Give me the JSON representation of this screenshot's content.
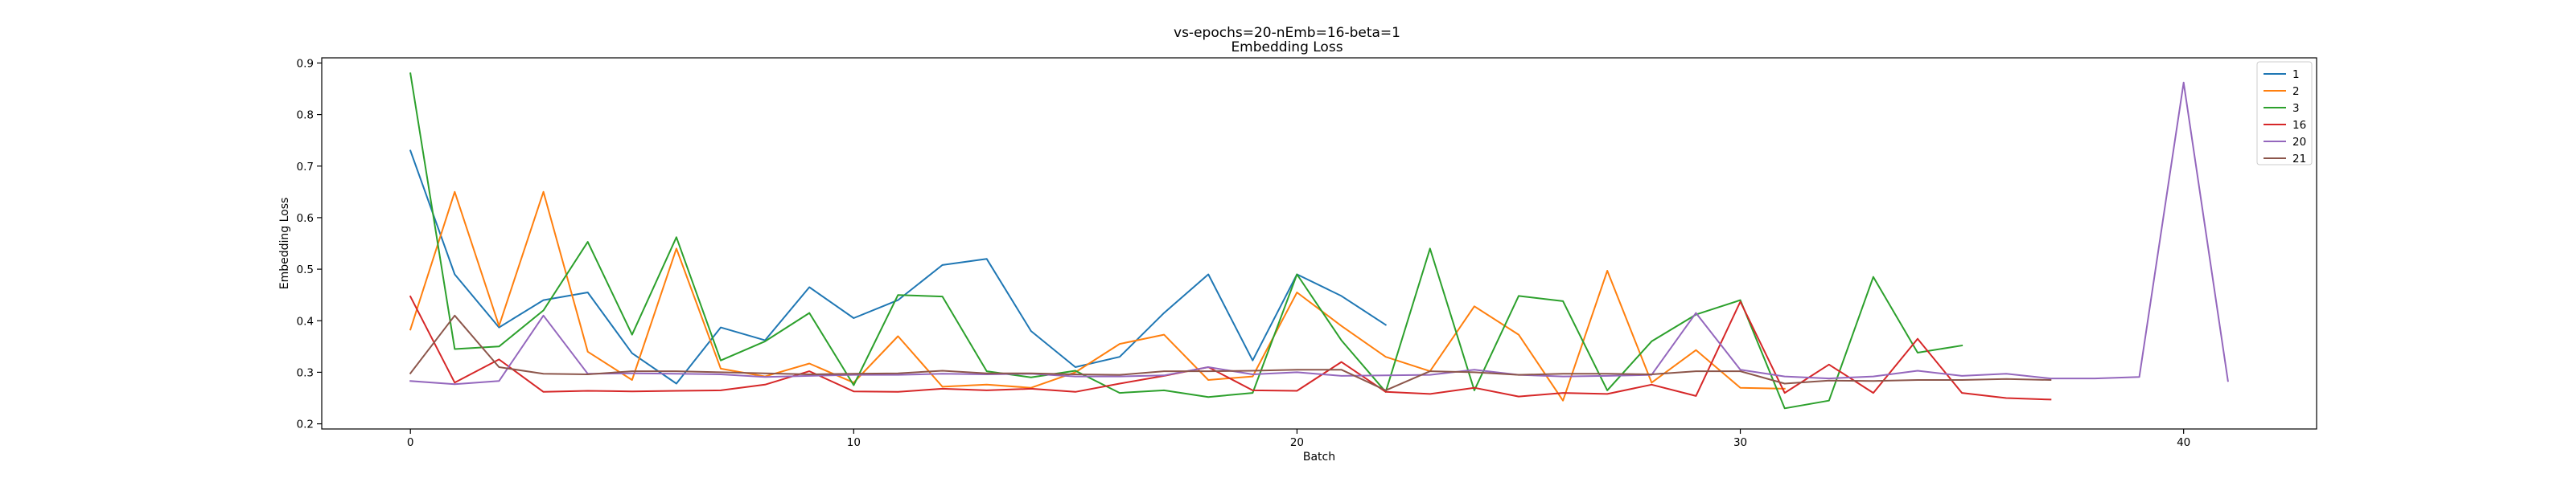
{
  "chart_data": {
    "type": "line",
    "title_line1": "vs-epochs=20-nEmb=16-beta=1",
    "title_line2": "Embedding Loss",
    "xlabel": "Batch",
    "ylabel": "Embedding Loss",
    "xlim": [
      -2,
      43
    ],
    "ylim": [
      0.19,
      0.91
    ],
    "xticks": [
      0,
      10,
      20,
      30,
      40
    ],
    "yticks": [
      0.2,
      0.3,
      0.4,
      0.5,
      0.6,
      0.7,
      0.8,
      0.9
    ],
    "xtick_labels": [
      "0",
      "10",
      "20",
      "30",
      "40"
    ],
    "ytick_labels": [
      "0.2",
      "0.3",
      "0.4",
      "0.5",
      "0.6",
      "0.7",
      "0.8",
      "0.9"
    ],
    "grid": false,
    "legend_position": "top-right",
    "series": [
      {
        "name": "1",
        "color": "#1f77b4",
        "values": [
          0.73,
          0.49,
          0.387,
          0.44,
          0.455,
          0.337,
          0.278,
          0.387,
          0.362,
          0.465,
          0.405,
          0.44,
          0.508,
          0.52,
          0.38,
          0.31,
          0.33,
          0.415,
          0.49,
          0.323,
          0.49,
          0.448,
          0.392
        ]
      },
      {
        "name": "2",
        "color": "#ff7f0e",
        "values": [
          0.383,
          0.65,
          0.39,
          0.65,
          0.34,
          0.285,
          0.54,
          0.307,
          0.292,
          0.317,
          0.28,
          0.37,
          0.272,
          0.276,
          0.27,
          0.3,
          0.355,
          0.373,
          0.285,
          0.292,
          0.455,
          0.39,
          0.33,
          0.302,
          0.428,
          0.373,
          0.245,
          0.497,
          0.28,
          0.343,
          0.27,
          0.268
        ]
      },
      {
        "name": "3",
        "color": "#2ca02c",
        "values": [
          0.88,
          0.345,
          0.35,
          0.42,
          0.553,
          0.373,
          0.562,
          0.323,
          0.36,
          0.415,
          0.275,
          0.45,
          0.447,
          0.302,
          0.29,
          0.303,
          0.26,
          0.265,
          0.252,
          0.26,
          0.49,
          0.362,
          0.262,
          0.54,
          0.265,
          0.448,
          0.438,
          0.265,
          0.36,
          0.412,
          0.44,
          0.23,
          0.245,
          0.485,
          0.338,
          0.352
        ]
      },
      {
        "name": "16",
        "color": "#d62728",
        "values": [
          0.447,
          0.28,
          0.325,
          0.262,
          0.264,
          0.263,
          0.264,
          0.265,
          0.276,
          0.302,
          0.263,
          0.262,
          0.268,
          0.265,
          0.268,
          0.262,
          0.278,
          0.293,
          0.31,
          0.265,
          0.264,
          0.32,
          0.262,
          0.258,
          0.27,
          0.253,
          0.26,
          0.258,
          0.276,
          0.254,
          0.437,
          0.26,
          0.315,
          0.26,
          0.365,
          0.26,
          0.25,
          0.247
        ]
      },
      {
        "name": "20",
        "color": "#9467bd",
        "values": [
          0.283,
          0.277,
          0.283,
          0.41,
          0.297,
          0.298,
          0.297,
          0.296,
          0.291,
          0.293,
          0.295,
          0.295,
          0.297,
          0.296,
          0.297,
          0.292,
          0.292,
          0.294,
          0.31,
          0.296,
          0.3,
          0.293,
          0.294,
          0.295,
          0.305,
          0.295,
          0.292,
          0.293,
          0.295,
          0.415,
          0.305,
          0.292,
          0.288,
          0.292,
          0.303,
          0.293,
          0.297,
          0.288,
          0.288,
          0.291,
          0.862,
          0.283
        ]
      },
      {
        "name": "21",
        "color": "#8c564b",
        "values": [
          0.298,
          0.41,
          0.31,
          0.297,
          0.296,
          0.302,
          0.302,
          0.3,
          0.298,
          0.296,
          0.297,
          0.298,
          0.303,
          0.298,
          0.298,
          0.296,
          0.295,
          0.302,
          0.302,
          0.303,
          0.305,
          0.305,
          0.265,
          0.302,
          0.3,
          0.295,
          0.297,
          0.297,
          0.296,
          0.302,
          0.302,
          0.278,
          0.284,
          0.283,
          0.285,
          0.285,
          0.287,
          0.285
        ]
      }
    ]
  }
}
